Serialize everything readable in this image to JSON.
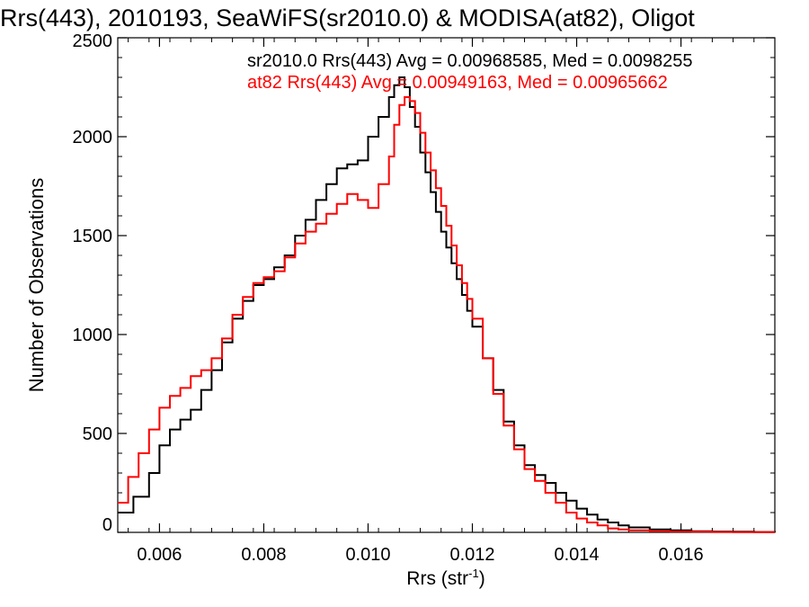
{
  "chart_data": {
    "type": "line",
    "title": "Rrs(443), 2010193, SeaWiFS(sr2010.0) & MODISA(at82), Oligot",
    "xlabel": "Rrs (str",
    "xlabel_sup": "-1",
    "xlabel_close": ")",
    "ylabel": "Number of Observations",
    "xlim": [
      0.0052,
      0.0178
    ],
    "ylim": [
      0,
      2500
    ],
    "xticks": [
      0.006,
      0.008,
      0.01,
      0.012,
      0.014,
      0.016
    ],
    "xtick_labels": [
      "0.006",
      "0.008",
      "0.010",
      "0.012",
      "0.014",
      "0.016"
    ],
    "yticks": [
      0,
      500,
      1000,
      1500,
      2000,
      2500
    ],
    "ytick_labels": [
      "0",
      "500",
      "1000",
      "1500",
      "2000",
      "2500"
    ],
    "grid": false,
    "step": true,
    "annotations": [
      {
        "text": "sr2010.0 Rrs(443) Avg = 0.00968585, Med = 0.0098255",
        "color": "#000000"
      },
      {
        "text": "at82 Rrs(443) Avg = 0.00949163, Med = 0.00965662",
        "color": "#ff0000"
      }
    ],
    "series": [
      {
        "color": "#000000",
        "x": [
          0.0052,
          0.0055,
          0.0058,
          0.006,
          0.0062,
          0.0064,
          0.0066,
          0.0068,
          0.007,
          0.0072,
          0.0074,
          0.0076,
          0.0078,
          0.008,
          0.0082,
          0.0084,
          0.0086,
          0.0088,
          0.009,
          0.0092,
          0.0094,
          0.0096,
          0.0098,
          0.01,
          0.0102,
          0.0104,
          0.0105,
          0.0106,
          0.0107,
          0.0108,
          0.0109,
          0.011,
          0.0111,
          0.0112,
          0.0113,
          0.0114,
          0.0115,
          0.0116,
          0.0117,
          0.0118,
          0.0119,
          0.012,
          0.0122,
          0.0124,
          0.0126,
          0.0128,
          0.013,
          0.0132,
          0.0134,
          0.0136,
          0.0138,
          0.014,
          0.0142,
          0.0144,
          0.0146,
          0.0148,
          0.015,
          0.0154,
          0.0158,
          0.0162,
          0.0166,
          0.017,
          0.0174,
          0.0178
        ],
        "y": [
          100,
          180,
          300,
          440,
          520,
          570,
          620,
          720,
          820,
          960,
          1080,
          1170,
          1250,
          1280,
          1340,
          1400,
          1500,
          1580,
          1680,
          1760,
          1840,
          1860,
          1880,
          2000,
          2100,
          2200,
          2260,
          2300,
          2250,
          2150,
          2050,
          1920,
          1820,
          1720,
          1620,
          1520,
          1440,
          1360,
          1280,
          1200,
          1120,
          1040,
          880,
          720,
          560,
          440,
          340,
          290,
          250,
          200,
          160,
          120,
          90,
          65,
          50,
          35,
          25,
          15,
          10,
          6,
          4,
          3,
          2,
          1
        ]
      },
      {
        "color": "#ff0000",
        "x": [
          0.0052,
          0.0054,
          0.0056,
          0.0058,
          0.006,
          0.0062,
          0.0064,
          0.0066,
          0.0068,
          0.007,
          0.0072,
          0.0074,
          0.0076,
          0.0078,
          0.008,
          0.0082,
          0.0084,
          0.0086,
          0.0088,
          0.009,
          0.0092,
          0.0094,
          0.0096,
          0.0098,
          0.01,
          0.0102,
          0.0104,
          0.0105,
          0.0106,
          0.0107,
          0.0108,
          0.0109,
          0.011,
          0.0111,
          0.0112,
          0.0113,
          0.0114,
          0.0115,
          0.0116,
          0.0117,
          0.0118,
          0.0119,
          0.012,
          0.0122,
          0.0124,
          0.0126,
          0.0128,
          0.013,
          0.0132,
          0.0134,
          0.0136,
          0.0138,
          0.014,
          0.0142,
          0.0144,
          0.0146,
          0.0148,
          0.015,
          0.0154,
          0.0158,
          0.0162,
          0.0166,
          0.017,
          0.0174,
          0.0178
        ],
        "y": [
          150,
          280,
          400,
          520,
          630,
          690,
          730,
          790,
          820,
          880,
          980,
          1100,
          1190,
          1260,
          1290,
          1320,
          1390,
          1460,
          1520,
          1560,
          1610,
          1660,
          1710,
          1680,
          1640,
          1760,
          1900,
          2060,
          2160,
          2200,
          2180,
          2120,
          2020,
          1920,
          1830,
          1740,
          1650,
          1550,
          1450,
          1350,
          1260,
          1180,
          1080,
          880,
          700,
          540,
          420,
          320,
          260,
          200,
          150,
          100,
          70,
          50,
          35,
          20,
          15,
          10,
          6,
          4,
          3,
          2,
          1,
          1,
          1
        ]
      }
    ]
  }
}
